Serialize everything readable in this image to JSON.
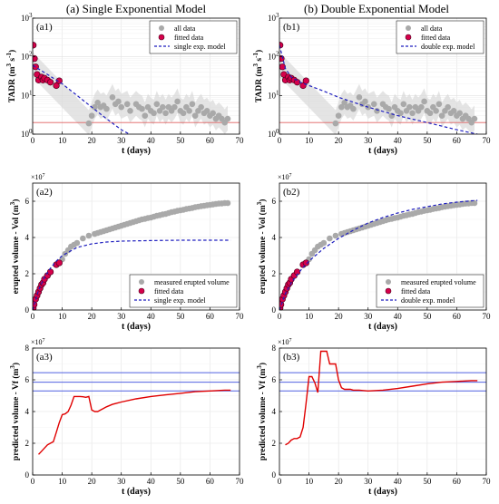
{
  "figure": {
    "titles": [
      "(a) Single Exponential Model",
      "(b) Double Exponential Model"
    ]
  },
  "chart_data": [
    {
      "id": "a1",
      "type": "scatter",
      "panel_label": "(a1)",
      "xlabel": "t (days)",
      "ylabel": "TADR (m",
      "ylabel_exp": "3",
      "ylabel_tail": " s",
      "ylabel_exp2": "-1",
      "ylabel_close": ")",
      "ylog": true,
      "xlim": [
        0,
        70
      ],
      "ylim": [
        1,
        1000
      ],
      "xticks": [
        0,
        10,
        20,
        30,
        40,
        50,
        60,
        70
      ],
      "yticks": [
        1,
        10,
        100,
        1000
      ],
      "ytick_base": "10",
      "ytick_exps": [
        "0",
        "1",
        "2",
        "3"
      ],
      "grid": true,
      "legend_position": "top-right",
      "threshold": 2,
      "series": [
        {
          "name": "all data",
          "kind": "gray-points",
          "color": "#a9a9a9",
          "x": [
            19,
            20,
            21,
            22,
            23,
            24,
            25,
            27,
            28,
            29,
            30,
            32,
            33,
            35,
            36,
            37,
            38,
            39,
            40,
            41,
            42,
            43,
            44,
            45,
            46,
            47,
            48,
            49,
            50,
            51,
            52,
            53,
            54,
            55,
            56,
            57,
            58,
            59,
            60,
            61,
            62,
            63,
            64,
            65,
            66
          ],
          "y": [
            1.9,
            3.0,
            5.0,
            6.5,
            5.0,
            5.5,
            4.5,
            9.0,
            6.0,
            7.0,
            5.0,
            6.0,
            4.0,
            6.0,
            5.0,
            4.5,
            3.0,
            5.0,
            4.0,
            3.5,
            6.0,
            4.0,
            5.0,
            3.5,
            5.0,
            4.0,
            5.0,
            7.0,
            4.0,
            3.5,
            5.0,
            4.0,
            6.0,
            3.0,
            4.0,
            5.0,
            3.5,
            4.0,
            3.0,
            3.5,
            2.5,
            3.0,
            2.5,
            2.0,
            2.5
          ]
        },
        {
          "name": "fitted data",
          "kind": "red-points",
          "color": "#d6004a",
          "x": [
            0.2,
            0.6,
            1,
            1.5,
            2,
            3,
            3.5,
            4,
            5,
            6,
            8,
            9
          ],
          "y": [
            200,
            90,
            55,
            35,
            25,
            30,
            25,
            28,
            25,
            22,
            18,
            24
          ]
        },
        {
          "name": "single exp. model",
          "kind": "dash-line",
          "color": "#1f1fbf",
          "x": [
            0,
            5,
            10,
            15,
            20,
            25,
            30,
            35
          ],
          "y": [
            60,
            35,
            20,
            10,
            5,
            2.5,
            1.3,
            0.8
          ]
        }
      ]
    },
    {
      "id": "b1",
      "type": "scatter",
      "panel_label": "(b1)",
      "xlabel": "t (days)",
      "ylabel": "TADR (m",
      "ylabel_exp": "3",
      "ylabel_tail": " s",
      "ylabel_exp2": "-1",
      "ylabel_close": ")",
      "ylog": true,
      "xlim": [
        0,
        70
      ],
      "ylim": [
        1,
        1000
      ],
      "xticks": [
        0,
        10,
        20,
        30,
        40,
        50,
        60,
        70
      ],
      "yticks": [
        1,
        10,
        100,
        1000
      ],
      "ytick_base": "10",
      "ytick_exps": [
        "0",
        "1",
        "2",
        "3"
      ],
      "grid": true,
      "legend_position": "top-right",
      "threshold": 2,
      "series": [
        {
          "name": "all data",
          "kind": "gray-points",
          "color": "#a9a9a9",
          "x": [
            19,
            20,
            21,
            22,
            23,
            24,
            25,
            27,
            28,
            29,
            30,
            32,
            33,
            35,
            36,
            37,
            38,
            39,
            40,
            41,
            42,
            43,
            44,
            45,
            46,
            47,
            48,
            49,
            50,
            51,
            52,
            53,
            54,
            55,
            56,
            57,
            58,
            59,
            60,
            61,
            62,
            63,
            64,
            65,
            66
          ],
          "y": [
            1.9,
            3.0,
            5.0,
            6.5,
            5.0,
            5.5,
            4.5,
            9.0,
            6.0,
            7.0,
            5.0,
            6.0,
            4.0,
            6.0,
            5.0,
            4.5,
            3.0,
            5.0,
            4.0,
            3.5,
            6.0,
            4.0,
            5.0,
            3.5,
            5.0,
            4.0,
            5.0,
            7.0,
            4.0,
            3.5,
            5.0,
            4.0,
            6.0,
            3.0,
            4.0,
            5.0,
            3.5,
            4.0,
            3.0,
            3.5,
            2.5,
            3.0,
            2.5,
            2.0,
            2.5
          ]
        },
        {
          "name": "fitted data",
          "kind": "red-points",
          "color": "#d6004a",
          "x": [
            0.2,
            0.6,
            1,
            1.5,
            2,
            3,
            3.5,
            4,
            5,
            6,
            8,
            9
          ],
          "y": [
            200,
            90,
            55,
            35,
            25,
            30,
            25,
            28,
            25,
            22,
            18,
            24
          ]
        },
        {
          "name": "double exp. model",
          "kind": "dash-line",
          "color": "#1f1fbf",
          "x": [
            0,
            2,
            4,
            7,
            10,
            15,
            20,
            30,
            40,
            50,
            60,
            67
          ],
          "y": [
            200,
            50,
            30,
            22,
            18,
            13,
            9,
            5,
            3,
            2,
            1.3,
            1.0
          ]
        }
      ]
    },
    {
      "id": "a2",
      "type": "scatter",
      "panel_label": "(a2)",
      "xlabel": "t (days)",
      "ylabel": "erupted volume - Vol (m",
      "ylabel_exp": "3",
      "ylabel_close": ")",
      "multiplier_base": "10",
      "multiplier_exp": "7",
      "multiplier_prefix": "×",
      "ylog": false,
      "xlim": [
        0,
        70
      ],
      "ylim": [
        0,
        7
      ],
      "xticks": [
        0,
        10,
        20,
        30,
        40,
        50,
        60,
        70
      ],
      "yticks": [
        0,
        2,
        4,
        6
      ],
      "grid": true,
      "legend_position": "bottom-right",
      "series": [
        {
          "name": "measured erupted volume",
          "kind": "gray-points",
          "color": "#a9a9a9",
          "x": [
            10,
            11,
            12,
            13,
            14,
            15,
            17,
            19,
            21,
            22,
            23,
            24,
            25,
            26,
            27,
            28,
            29,
            30,
            31,
            32,
            33,
            34,
            35,
            36,
            37,
            38,
            39,
            40,
            41,
            42,
            43,
            44,
            45,
            46,
            47,
            48,
            49,
            50,
            51,
            52,
            53,
            54,
            55,
            56,
            57,
            58,
            59,
            60,
            61,
            62,
            63,
            64,
            65,
            66
          ],
          "y": [
            2.8,
            3.1,
            3.3,
            3.5,
            3.6,
            3.7,
            3.95,
            4.1,
            4.2,
            4.25,
            4.3,
            4.35,
            4.4,
            4.45,
            4.5,
            4.55,
            4.6,
            4.65,
            4.7,
            4.75,
            4.8,
            4.85,
            4.9,
            4.95,
            5.0,
            5.03,
            5.07,
            5.1,
            5.15,
            5.2,
            5.23,
            5.27,
            5.3,
            5.35,
            5.4,
            5.43,
            5.47,
            5.5,
            5.53,
            5.57,
            5.6,
            5.63,
            5.67,
            5.7,
            5.73,
            5.75,
            5.78,
            5.8,
            5.82,
            5.85,
            5.87,
            5.88,
            5.9,
            5.9
          ]
        },
        {
          "name": "fitted data",
          "kind": "red-points",
          "color": "#d6004a",
          "x": [
            0.2,
            0.5,
            1,
            1.5,
            2,
            2.5,
            3,
            3.5,
            4,
            5,
            6,
            8,
            9
          ],
          "y": [
            0.1,
            0.3,
            0.6,
            0.8,
            1.0,
            1.2,
            1.4,
            1.5,
            1.7,
            1.9,
            2.1,
            2.5,
            2.6
          ]
        },
        {
          "name": "single exp. model",
          "kind": "dash-line",
          "color": "#1f1fbf",
          "x": [
            0,
            2,
            4,
            6,
            8,
            10,
            15,
            20,
            25,
            30,
            40,
            50,
            60,
            67
          ],
          "y": [
            0,
            1.1,
            1.8,
            2.3,
            2.7,
            3.0,
            3.45,
            3.65,
            3.75,
            3.8,
            3.83,
            3.85,
            3.85,
            3.85
          ]
        }
      ]
    },
    {
      "id": "b2",
      "type": "scatter",
      "panel_label": "(b2)",
      "xlabel": "t (days)",
      "ylabel": "erupted volume - Vol (m",
      "ylabel_exp": "3",
      "ylabel_close": ")",
      "multiplier_base": "10",
      "multiplier_exp": "7",
      "multiplier_prefix": "×",
      "ylog": false,
      "xlim": [
        0,
        70
      ],
      "ylim": [
        0,
        7
      ],
      "xticks": [
        0,
        10,
        20,
        30,
        40,
        50,
        60,
        70
      ],
      "yticks": [
        0,
        2,
        4,
        6
      ],
      "grid": true,
      "legend_position": "bottom-right",
      "series": [
        {
          "name": "measured erupted volume",
          "kind": "gray-points",
          "color": "#a9a9a9",
          "x": [
            10,
            11,
            12,
            13,
            14,
            15,
            17,
            19,
            21,
            22,
            23,
            24,
            25,
            26,
            27,
            28,
            29,
            30,
            31,
            32,
            33,
            34,
            35,
            36,
            37,
            38,
            39,
            40,
            41,
            42,
            43,
            44,
            45,
            46,
            47,
            48,
            49,
            50,
            51,
            52,
            53,
            54,
            55,
            56,
            57,
            58,
            59,
            60,
            61,
            62,
            63,
            64,
            65,
            66
          ],
          "y": [
            2.8,
            3.1,
            3.3,
            3.5,
            3.6,
            3.7,
            3.95,
            4.1,
            4.2,
            4.25,
            4.3,
            4.35,
            4.4,
            4.45,
            4.5,
            4.55,
            4.6,
            4.65,
            4.7,
            4.75,
            4.8,
            4.85,
            4.9,
            4.95,
            5.0,
            5.03,
            5.07,
            5.1,
            5.15,
            5.2,
            5.23,
            5.27,
            5.3,
            5.35,
            5.4,
            5.43,
            5.47,
            5.5,
            5.53,
            5.57,
            5.6,
            5.63,
            5.67,
            5.7,
            5.73,
            5.75,
            5.78,
            5.8,
            5.82,
            5.85,
            5.87,
            5.88,
            5.9,
            5.9
          ]
        },
        {
          "name": "fitted data",
          "kind": "red-points",
          "color": "#d6004a",
          "x": [
            0.2,
            0.5,
            1,
            1.5,
            2,
            2.5,
            3,
            3.5,
            4,
            5,
            6,
            8,
            9
          ],
          "y": [
            0.1,
            0.3,
            0.6,
            0.8,
            1.0,
            1.2,
            1.4,
            1.5,
            1.7,
            1.9,
            2.1,
            2.5,
            2.6
          ]
        },
        {
          "name": "double exp. model",
          "kind": "dash-line",
          "color": "#1f1fbf",
          "x": [
            0,
            2,
            4,
            6,
            8,
            10,
            15,
            20,
            25,
            30,
            35,
            40,
            45,
            50,
            55,
            60,
            67
          ],
          "y": [
            0,
            0.9,
            1.5,
            1.95,
            2.35,
            2.7,
            3.4,
            3.95,
            4.4,
            4.8,
            5.1,
            5.35,
            5.55,
            5.7,
            5.85,
            5.95,
            6.05
          ]
        }
      ]
    },
    {
      "id": "a3",
      "type": "line",
      "panel_label": "(a3)",
      "xlabel": "t (days)",
      "ylabel": "predicted volume - Vf (m",
      "ylabel_exp": "3",
      "ylabel_close": ")",
      "multiplier_base": "10",
      "multiplier_exp": "7",
      "multiplier_prefix": "×",
      "ylog": false,
      "xlim": [
        0,
        70
      ],
      "ylim": [
        0,
        8
      ],
      "xticks": [
        0,
        10,
        20,
        30,
        40,
        50,
        60,
        70
      ],
      "yticks": [
        0,
        2,
        4,
        6,
        8
      ],
      "grid": true,
      "hlines": [
        5.3,
        5.85,
        6.45
      ],
      "series": [
        {
          "name": "",
          "kind": "solid-line",
          "color": "#e00000",
          "x": [
            2,
            3,
            4,
            5,
            6,
            7,
            8,
            9,
            10,
            11,
            12,
            13,
            14,
            15,
            16,
            17,
            18,
            19,
            20,
            21,
            22,
            23,
            24,
            25,
            27,
            30,
            35,
            40,
            45,
            50,
            55,
            60,
            65,
            67
          ],
          "y": [
            1.3,
            1.5,
            1.7,
            1.9,
            2.0,
            2.1,
            2.7,
            3.3,
            3.8,
            3.85,
            4.0,
            4.4,
            4.95,
            4.95,
            4.95,
            4.93,
            4.9,
            4.95,
            4.1,
            4.0,
            4.0,
            4.1,
            4.2,
            4.3,
            4.45,
            4.6,
            4.8,
            4.95,
            5.05,
            5.15,
            5.25,
            5.3,
            5.35,
            5.35
          ]
        }
      ]
    },
    {
      "id": "b3",
      "type": "line",
      "panel_label": "(b3)",
      "xlabel": "t (days)",
      "ylabel": "predicted volume - Vf (m",
      "ylabel_exp": "3",
      "ylabel_close": ")",
      "multiplier_base": "10",
      "multiplier_exp": "7",
      "multiplier_prefix": "×",
      "ylog": false,
      "xlim": [
        0,
        70
      ],
      "ylim": [
        0,
        8
      ],
      "xticks": [
        0,
        10,
        20,
        30,
        40,
        50,
        60,
        70
      ],
      "yticks": [
        0,
        2,
        4,
        6,
        8
      ],
      "grid": true,
      "hlines": [
        5.3,
        5.85,
        6.45
      ],
      "series": [
        {
          "name": "",
          "kind": "solid-line",
          "color": "#e00000",
          "x": [
            2,
            3,
            4,
            5,
            6,
            7,
            8,
            9,
            10,
            11,
            12,
            13,
            14,
            15,
            16,
            17,
            18,
            19,
            20,
            21,
            22,
            23,
            24,
            25,
            27,
            30,
            35,
            40,
            45,
            50,
            55,
            60,
            65,
            67
          ],
          "y": [
            1.9,
            2.0,
            2.2,
            2.3,
            2.3,
            2.4,
            3.0,
            4.5,
            6.2,
            6.2,
            5.8,
            5.2,
            7.8,
            7.8,
            7.8,
            7.0,
            7.0,
            7.0,
            6.0,
            5.5,
            5.4,
            5.4,
            5.4,
            5.35,
            5.35,
            5.3,
            5.35,
            5.45,
            5.6,
            5.75,
            5.85,
            5.9,
            5.95,
            5.95
          ]
        }
      ]
    }
  ]
}
